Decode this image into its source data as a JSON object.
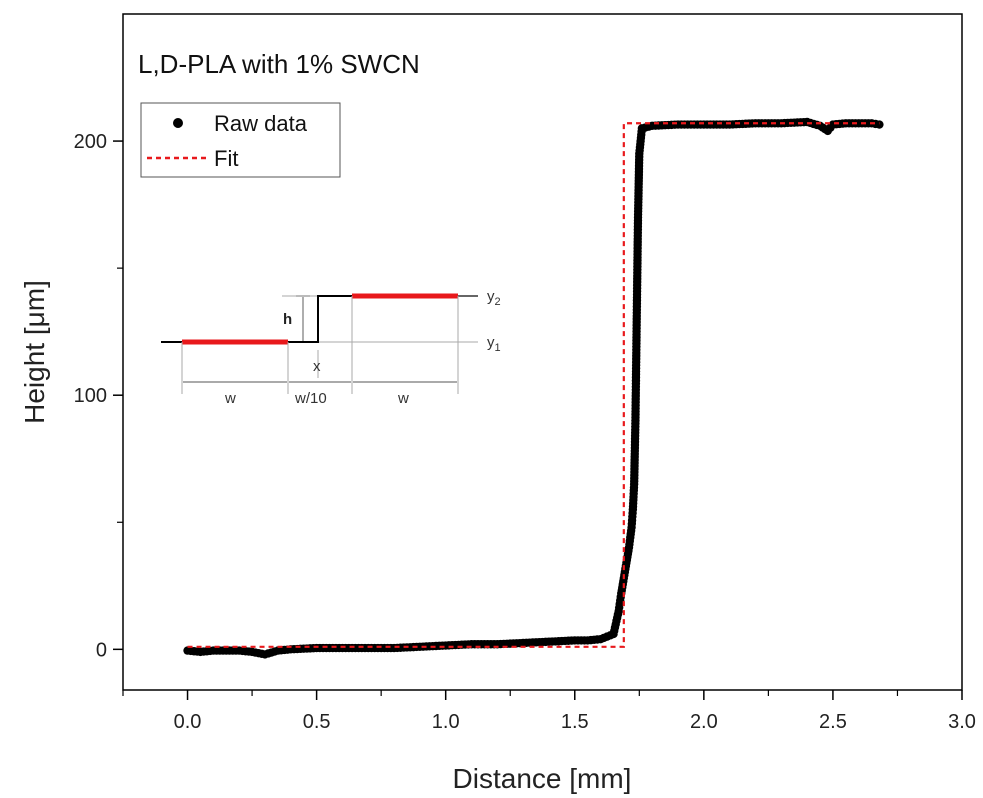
{
  "chart_data": {
    "type": "scatter",
    "title": "L,D-PLA with 1% SWCN",
    "xlabel": "Distance [mm]",
    "ylabel": "Height [μm]",
    "xlim": [
      -0.25,
      3.0
    ],
    "ylim": [
      -16,
      250
    ],
    "x_ticks": [
      0.0,
      0.5,
      1.0,
      1.5,
      2.0,
      2.5,
      3.0
    ],
    "x_tick_labels": [
      "0.0",
      "0.5",
      "1.0",
      "1.5",
      "2.0",
      "2.5",
      "3.0"
    ],
    "y_ticks": [
      0,
      100,
      200
    ],
    "y_tick_labels": [
      "0",
      "100",
      "200"
    ],
    "grid": false,
    "legend_placement": "top-left",
    "series": [
      {
        "name": "Raw data",
        "style": "markers",
        "color": "#000000",
        "x": [
          0.0,
          0.05,
          0.1,
          0.15,
          0.2,
          0.25,
          0.3,
          0.35,
          0.4,
          0.5,
          0.6,
          0.7,
          0.8,
          0.9,
          1.0,
          1.1,
          1.2,
          1.3,
          1.4,
          1.5,
          1.55,
          1.6,
          1.65,
          1.67,
          1.68,
          1.69,
          1.7,
          1.71,
          1.72,
          1.725,
          1.73,
          1.735,
          1.74,
          1.745,
          1.75,
          1.76,
          1.8,
          1.9,
          2.0,
          2.1,
          2.2,
          2.3,
          2.4,
          2.45,
          2.48,
          2.5,
          2.55,
          2.6,
          2.65,
          2.68
        ],
        "y": [
          -0.5,
          -1.0,
          -0.5,
          -0.5,
          -0.5,
          -1.0,
          -2.0,
          -0.5,
          0.0,
          0.5,
          0.5,
          0.5,
          0.5,
          1.0,
          1.5,
          2.0,
          2.0,
          2.5,
          3.0,
          3.5,
          3.5,
          4.0,
          6.0,
          15.0,
          22.0,
          28.0,
          34.0,
          40.0,
          48.0,
          55.0,
          65.0,
          90.0,
          130.0,
          170.0,
          195.0,
          205.0,
          206.0,
          206.5,
          206.5,
          206.5,
          207.0,
          207.0,
          207.5,
          206.0,
          204.0,
          206.5,
          207.0,
          207.0,
          207.0,
          206.5
        ]
      },
      {
        "name": "Fit",
        "style": "dashed-line",
        "color": "#e8191c",
        "x": [
          0.0,
          1.69,
          1.69,
          2.68
        ],
        "y": [
          1.0,
          1.0,
          207.0,
          207.0
        ]
      }
    ],
    "inset_labels": {
      "h": "h",
      "x": "x",
      "y1": "y",
      "y1_sub": "1",
      "y2": "y",
      "y2_sub": "2",
      "w_left": "w",
      "w_mid": "w/10",
      "w_right": "w"
    }
  }
}
